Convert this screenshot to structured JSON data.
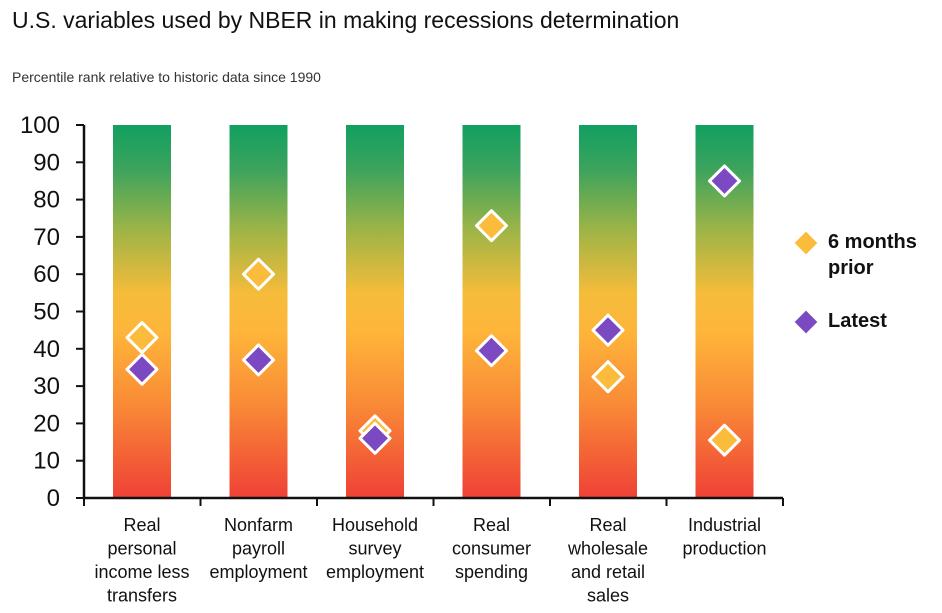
{
  "chart_data": {
    "type": "scatter",
    "title": "U.S. variables used by NBER in making recessions determination",
    "subtitle": "Percentile rank relative to historic data since 1990",
    "ylim": [
      0,
      100
    ],
    "yticks": [
      0,
      10,
      20,
      30,
      40,
      50,
      60,
      70,
      80,
      90,
      100
    ],
    "categories": [
      "Real personal income less transfers",
      "Nonfarm payroll employment",
      "Household survey employment",
      "Real consumer spending",
      "Real wholesale and retail sales",
      "Industrial production"
    ],
    "category_lines": [
      [
        "Real",
        "personal",
        "income less",
        "transfers"
      ],
      [
        "Nonfarm",
        "payroll",
        "employment"
      ],
      [
        "Household",
        "survey",
        "employment"
      ],
      [
        "Real",
        "consumer",
        "spending"
      ],
      [
        "Real",
        "wholesale",
        "and retail",
        "sales"
      ],
      [
        "Industrial",
        "production"
      ]
    ],
    "series": [
      {
        "name": "6 months prior",
        "color": "#FBBC3C",
        "values": [
          43,
          60,
          18,
          73,
          32.5,
          15.5
        ]
      },
      {
        "name": "Latest",
        "color": "#7B49C2",
        "values": [
          34.5,
          37,
          16,
          39.5,
          45,
          85
        ]
      }
    ],
    "legend": "right",
    "bar_gradient": [
      "#EF4136",
      "#F98A36",
      "#FEB63A",
      "#9CB447",
      "#3DA35D",
      "#11A060"
    ]
  },
  "legend": {
    "prior_label": "6 months prior",
    "latest_label": "Latest"
  }
}
